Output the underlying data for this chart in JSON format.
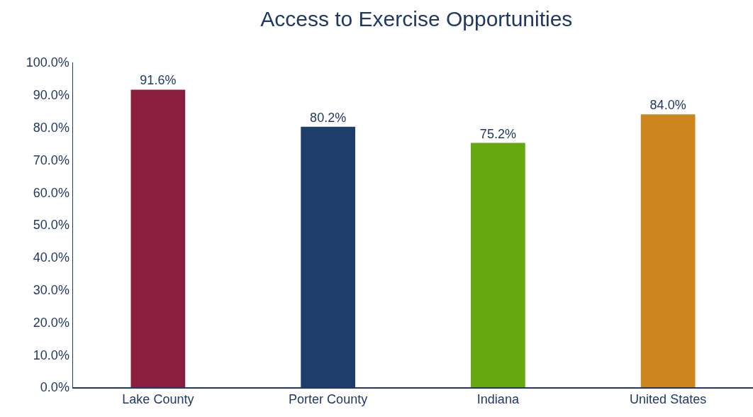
{
  "chart_data": {
    "type": "bar",
    "title": "Access to Exercise Opportunities",
    "categories": [
      "Lake County",
      "Porter County",
      "Indiana",
      "United States"
    ],
    "values": [
      91.6,
      80.2,
      75.2,
      84.0
    ],
    "colors": [
      "#8b1e3f",
      "#1f3d6b",
      "#66a80f",
      "#cd861d"
    ],
    "value_labels": [
      "91.6%",
      "80.2%",
      "75.2%",
      "84.0%"
    ],
    "ylim": [
      0,
      100
    ],
    "yticks": [
      {
        "value": 0,
        "label": "0.0%"
      },
      {
        "value": 10,
        "label": "10.0%"
      },
      {
        "value": 20,
        "label": "20.0%"
      },
      {
        "value": 30,
        "label": "30.0%"
      },
      {
        "value": 40,
        "label": "40.0%"
      },
      {
        "value": 50,
        "label": "50.0%"
      },
      {
        "value": 60,
        "label": "60.0%"
      },
      {
        "value": 70,
        "label": "70.0%"
      },
      {
        "value": 80,
        "label": "80.0%"
      },
      {
        "value": 90,
        "label": "90.0%"
      },
      {
        "value": 100,
        "label": "100.0%"
      }
    ],
    "grid": false
  }
}
